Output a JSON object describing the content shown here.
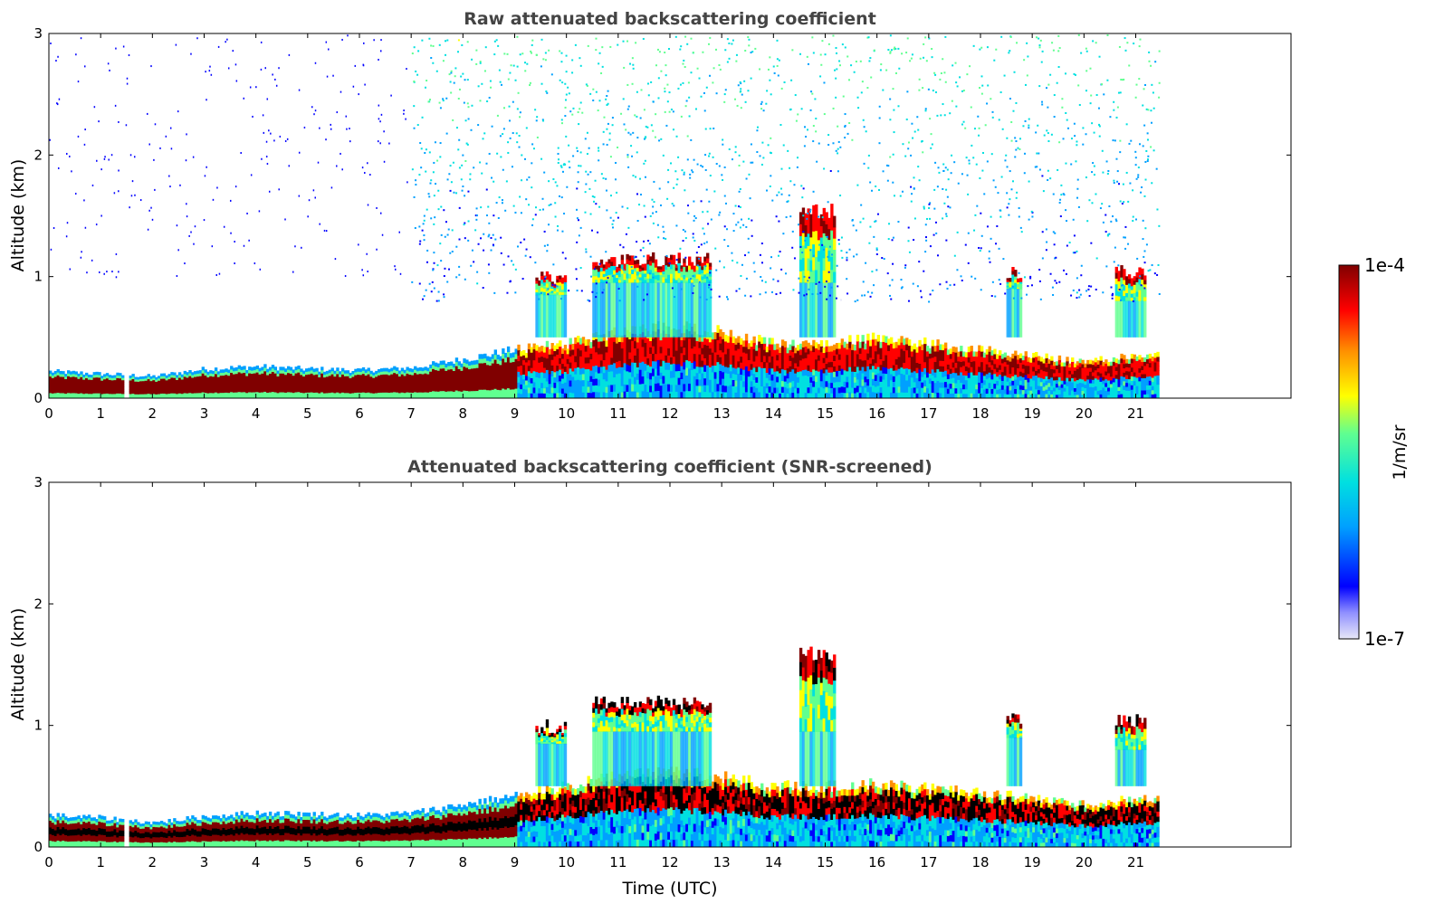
{
  "chart_data": [
    {
      "type": "heatmap",
      "title": "Raw attenuated backscattering coefficient",
      "xlabel": "",
      "ylabel": "Altitude (km)",
      "xlim": [
        0,
        24
      ],
      "ylim": [
        0,
        3
      ],
      "x_ticks": [
        "0",
        "1",
        "2",
        "3",
        "4",
        "5",
        "6",
        "7",
        "8",
        "9",
        "10",
        "11",
        "12",
        "13",
        "14",
        "15",
        "16",
        "17",
        "18",
        "19",
        "20",
        "21"
      ],
      "y_ticks": [
        "0",
        "1",
        "2",
        "3"
      ],
      "data_time_range": [
        0,
        21.45
      ],
      "boundary_layer_top_km": [
        [
          0,
          0.22
        ],
        [
          1,
          0.2
        ],
        [
          2,
          0.18
        ],
        [
          3,
          0.24
        ],
        [
          4,
          0.26
        ],
        [
          5,
          0.24
        ],
        [
          6,
          0.23
        ],
        [
          7,
          0.25
        ],
        [
          8,
          0.32
        ],
        [
          9,
          0.4
        ],
        [
          10,
          0.45
        ],
        [
          11,
          0.55
        ],
        [
          12,
          0.6
        ],
        [
          13,
          0.55
        ],
        [
          14,
          0.45
        ],
        [
          15,
          0.45
        ],
        [
          16,
          0.5
        ],
        [
          17,
          0.45
        ],
        [
          18,
          0.4
        ],
        [
          19,
          0.35
        ],
        [
          20,
          0.3
        ],
        [
          21,
          0.35
        ]
      ],
      "cloud_layers": [
        {
          "time_start": 9.4,
          "time_end": 10.0,
          "base_km": 0.85,
          "top_km": 1.05
        },
        {
          "time_start": 10.5,
          "time_end": 12.8,
          "base_km": 0.95,
          "top_km": 1.2
        },
        {
          "time_start": 14.5,
          "time_end": 15.2,
          "base_km": 0.95,
          "top_km": 1.6
        },
        {
          "time_start": 18.5,
          "time_end": 18.8,
          "base_km": 0.9,
          "top_km": 1.1
        },
        {
          "time_start": 20.6,
          "time_end": 21.2,
          "base_km": 0.8,
          "top_km": 1.1
        }
      ],
      "noise_region": {
        "time_start": 7.0,
        "time_end": 21.45,
        "altitude_km": [
          0.8,
          3.0
        ]
      }
    },
    {
      "type": "heatmap",
      "title": "Attenuated backscattering coefficient (SNR-screened)",
      "xlabel": "Time (UTC)",
      "ylabel": "Altitude (km)",
      "xlim": [
        0,
        24
      ],
      "ylim": [
        0,
        3
      ],
      "x_ticks": [
        "0",
        "1",
        "2",
        "3",
        "4",
        "5",
        "6",
        "7",
        "8",
        "9",
        "10",
        "11",
        "12",
        "13",
        "14",
        "15",
        "16",
        "17",
        "18",
        "19",
        "20",
        "21"
      ],
      "y_ticks": [
        "0",
        "1",
        "2",
        "3"
      ],
      "data_time_range": [
        0,
        21.45
      ],
      "boundary_layer_top_km": [
        [
          0,
          0.26
        ],
        [
          1,
          0.24
        ],
        [
          2,
          0.2
        ],
        [
          3,
          0.25
        ],
        [
          4,
          0.28
        ],
        [
          5,
          0.27
        ],
        [
          6,
          0.26
        ],
        [
          7,
          0.28
        ],
        [
          8,
          0.35
        ],
        [
          9,
          0.42
        ],
        [
          10,
          0.5
        ],
        [
          11,
          0.58
        ],
        [
          12,
          0.62
        ],
        [
          13,
          0.58
        ],
        [
          14,
          0.5
        ],
        [
          15,
          0.5
        ],
        [
          16,
          0.52
        ],
        [
          17,
          0.48
        ],
        [
          18,
          0.45
        ],
        [
          19,
          0.4
        ],
        [
          20,
          0.35
        ],
        [
          21,
          0.4
        ]
      ],
      "cloud_layers": [
        {
          "time_start": 9.4,
          "time_end": 10.0,
          "base_km": 0.85,
          "top_km": 1.05
        },
        {
          "time_start": 10.5,
          "time_end": 12.8,
          "base_km": 0.95,
          "top_km": 1.25
        },
        {
          "time_start": 14.5,
          "time_end": 15.2,
          "base_km": 0.95,
          "top_km": 1.65
        },
        {
          "time_start": 18.5,
          "time_end": 18.8,
          "base_km": 0.9,
          "top_km": 1.1
        },
        {
          "time_start": 20.6,
          "time_end": 21.2,
          "base_km": 0.8,
          "top_km": 1.1
        }
      ]
    }
  ],
  "colorbar": {
    "label": "1/m/sr",
    "max_label": "1e-4",
    "min_label": "1e-7",
    "colormap": [
      "#e8e8f8",
      "#0000ff",
      "#00a0ff",
      "#00e0e0",
      "#60ff90",
      "#ffff00",
      "#ff9000",
      "#ff0000",
      "#800000"
    ]
  }
}
